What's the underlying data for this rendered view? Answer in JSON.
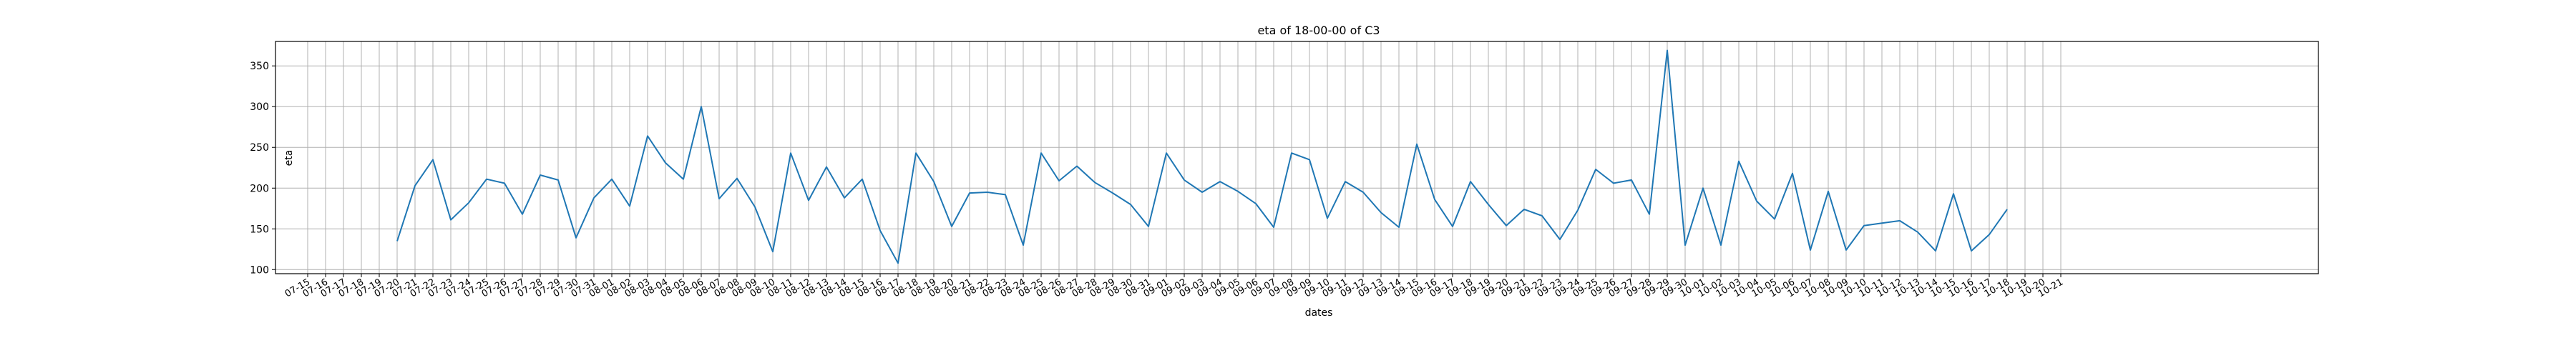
{
  "chart_data": {
    "type": "line",
    "title": "eta of 18-00-00 of C3",
    "xlabel": "dates",
    "ylabel": "eta",
    "x_ticks": [
      "07-15",
      "07-16",
      "07-17",
      "07-18",
      "07-19",
      "07-20",
      "07-21",
      "07-22",
      "07-23",
      "07-24",
      "07-25",
      "07-26",
      "07-27",
      "07-28",
      "07-29",
      "07-30",
      "07-31",
      "08-01",
      "08-02",
      "08-03",
      "08-04",
      "08-05",
      "08-06",
      "08-07",
      "08-08",
      "08-09",
      "08-10",
      "08-11",
      "08-12",
      "08-13",
      "08-14",
      "08-15",
      "08-16",
      "08-17",
      "08-18",
      "08-19",
      "08-20",
      "08-21",
      "08-22",
      "08-23",
      "08-24",
      "08-25",
      "08-26",
      "08-27",
      "08-28",
      "08-29",
      "08-30",
      "08-31",
      "09-01",
      "09-02",
      "09-03",
      "09-04",
      "09-05",
      "09-06",
      "09-07",
      "09-08",
      "09-09",
      "09-10",
      "09-11",
      "09-12",
      "09-13",
      "09-14",
      "09-15",
      "09-16",
      "09-17",
      "09-18",
      "09-19",
      "09-20",
      "09-21",
      "09-22",
      "09-23",
      "09-24",
      "09-25",
      "09-26",
      "09-27",
      "09-28",
      "09-29",
      "09-30",
      "10-01",
      "10-02",
      "10-03",
      "10-04",
      "10-05",
      "10-06",
      "10-07",
      "10-08",
      "10-09",
      "10-10",
      "10-11",
      "10-12",
      "10-13",
      "10-14",
      "10-15",
      "10-16",
      "10-17",
      "10-18",
      "10-19",
      "10-20",
      "10-21"
    ],
    "y_ticks": [
      100,
      150,
      200,
      250,
      300,
      350
    ],
    "ylim": [
      95,
      380
    ],
    "grid": true,
    "series": [
      {
        "color": "#1f77b4",
        "x": [
          "07-20",
          "07-21",
          "07-22",
          "07-23",
          "07-24",
          "07-25",
          "07-26",
          "07-27",
          "07-28",
          "07-29",
          "07-30",
          "07-31",
          "08-01",
          "08-02",
          "08-03",
          "08-04",
          "08-05",
          "08-06",
          "08-07",
          "08-08",
          "08-09",
          "08-10",
          "08-11",
          "08-12",
          "08-13",
          "08-14",
          "08-15",
          "08-16",
          "08-17",
          "08-18",
          "08-19",
          "08-20",
          "08-21",
          "08-22",
          "08-23",
          "08-24",
          "08-25",
          "08-26",
          "08-27",
          "08-28",
          "08-29",
          "08-30",
          "08-31",
          "09-01",
          "09-02",
          "09-03",
          "09-04",
          "09-05",
          "09-06",
          "09-07",
          "09-08",
          "09-09",
          "09-10",
          "09-11",
          "09-12",
          "09-13",
          "09-14",
          "09-15",
          "09-16",
          "09-17",
          "09-18",
          "09-19",
          "09-20",
          "09-21",
          "09-22",
          "09-23",
          "09-24",
          "09-25",
          "09-26",
          "09-27",
          "09-28",
          "09-29",
          "09-30",
          "10-01",
          "10-02",
          "10-03",
          "10-04",
          "10-05",
          "10-06",
          "10-07",
          "10-08",
          "10-09",
          "10-10",
          "10-11",
          "10-12",
          "10-13",
          "10-14",
          "10-15",
          "10-16",
          "10-17",
          "10-18"
        ],
        "values": [
          135,
          203,
          235,
          161,
          182,
          211,
          206,
          168,
          216,
          210,
          139,
          188,
          211,
          178,
          264,
          231,
          211,
          300,
          187,
          212,
          177,
          122,
          243,
          185,
          226,
          188,
          211,
          148,
          108,
          243,
          208,
          153,
          194,
          195,
          192,
          130,
          243,
          209,
          227,
          207,
          194,
          180,
          153,
          243,
          210,
          195,
          208,
          196,
          181,
          152,
          243,
          235,
          163,
          208,
          195,
          170,
          152,
          254,
          186,
          153,
          208,
          180,
          154,
          174,
          166,
          137,
          173,
          223,
          206,
          210,
          168,
          369,
          130,
          200,
          130,
          233,
          184,
          162,
          218,
          124,
          196,
          124,
          154,
          157,
          160,
          146,
          123,
          193,
          123,
          143,
          174
        ]
      }
    ]
  }
}
